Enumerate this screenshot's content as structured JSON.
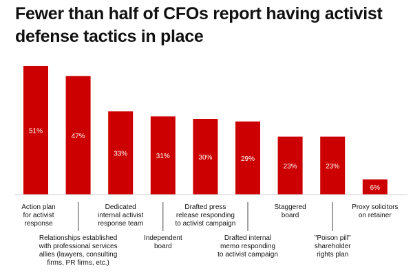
{
  "chart_data": {
    "type": "bar",
    "title": "Fewer than half of CFOs report having activist defense tactics in place",
    "categories": [
      "Action plan for activist response",
      "Relationships established with professional services allies (lawyers, consulting firms, PR firms, etc.)",
      "Dedicated internal activist response team",
      "Independent board",
      "Drafted press release responding to activist campaign",
      "Drafted internal memo responding to activist campaign",
      "Staggered board",
      "\"Poison pill\" shareholder rights plan",
      "Proxy solicitors on retainer"
    ],
    "category_lines": [
      [
        "Action plan",
        "for activist",
        "response"
      ],
      [
        "Relationships established",
        "with professional services",
        "allies (lawyers, consulting",
        "firms, PR firms, etc.)"
      ],
      [
        "Dedicated",
        "internal activist",
        "response team"
      ],
      [
        "Independent",
        "board"
      ],
      [
        "Drafted press",
        "release responding",
        "to activist campaign"
      ],
      [
        "Drafted internal",
        "memo responding",
        "to activist campaign"
      ],
      [
        "Staggered",
        "board"
      ],
      [
        "\"Poison pill\"",
        "shareholder",
        "rights plan"
      ],
      [
        "Proxy solicitors",
        "on retainer"
      ]
    ],
    "values": [
      51,
      47,
      33,
      31,
      30,
      29,
      23,
      23,
      6
    ],
    "value_labels": [
      "51%",
      "47%",
      "33%",
      "31%",
      "30%",
      "29%",
      "23%",
      "23%",
      "6%"
    ],
    "bar_color": "#cc0000",
    "ylim": [
      0,
      51
    ],
    "xlabel": "",
    "ylabel": "",
    "grid": false,
    "legend": false
  }
}
